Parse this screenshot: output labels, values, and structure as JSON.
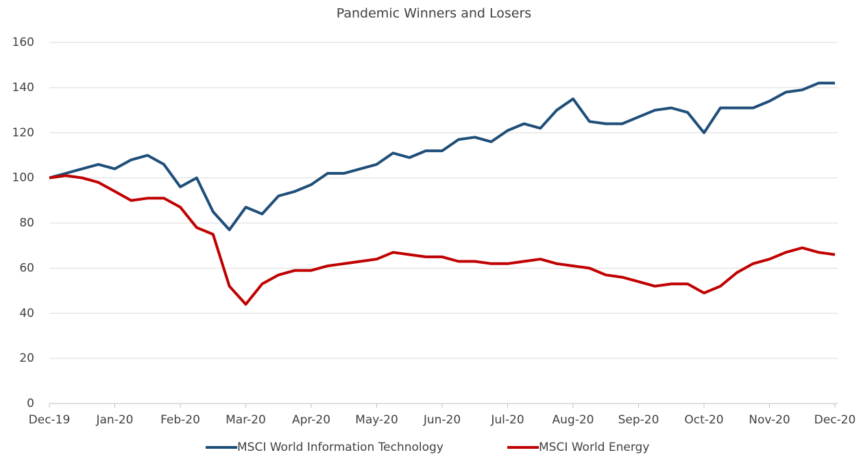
{
  "chart_data": {
    "type": "line",
    "title": "Pandemic Winners and Losers",
    "categories": [
      "Dec-19",
      null,
      null,
      null,
      "Jan-20",
      null,
      null,
      null,
      "Feb-20",
      null,
      null,
      null,
      "Mar-20",
      null,
      null,
      null,
      "Apr-20",
      null,
      null,
      null,
      "May-20",
      null,
      null,
      null,
      "Jun-20",
      null,
      null,
      null,
      "Jul-20",
      null,
      null,
      null,
      "Aug-20",
      null,
      null,
      null,
      "Sep-20",
      null,
      null,
      null,
      "Oct-20",
      null,
      null,
      null,
      "Nov-20",
      null,
      null,
      null,
      "Dec-20"
    ],
    "series": [
      {
        "name": "MSCI World Information Technology",
        "color": "#1f4e79",
        "values": [
          100,
          102,
          104,
          106,
          104,
          108,
          110,
          106,
          96,
          100,
          85,
          77,
          87,
          84,
          92,
          94,
          97,
          102,
          102,
          104,
          106,
          111,
          109,
          112,
          112,
          117,
          118,
          116,
          121,
          124,
          122,
          130,
          135,
          125,
          124,
          124,
          127,
          130,
          131,
          129,
          120,
          131,
          131,
          131,
          134,
          138,
          139,
          142,
          142
        ]
      },
      {
        "name": "MSCI World Energy",
        "color": "#c00000",
        "values": [
          100,
          101,
          100,
          98,
          94,
          90,
          91,
          91,
          87,
          78,
          75,
          52,
          44,
          53,
          57,
          59,
          59,
          61,
          62,
          63,
          64,
          67,
          66,
          65,
          65,
          63,
          63,
          62,
          62,
          63,
          64,
          62,
          61,
          60,
          57,
          56,
          54,
          52,
          53,
          53,
          49,
          52,
          58,
          62,
          64,
          67,
          69,
          67,
          66
        ]
      }
    ],
    "ylim": [
      0,
      160
    ],
    "yticks": [
      0,
      20,
      40,
      60,
      80,
      100,
      120,
      140,
      160
    ],
    "grid": true,
    "legend": "bottom"
  }
}
